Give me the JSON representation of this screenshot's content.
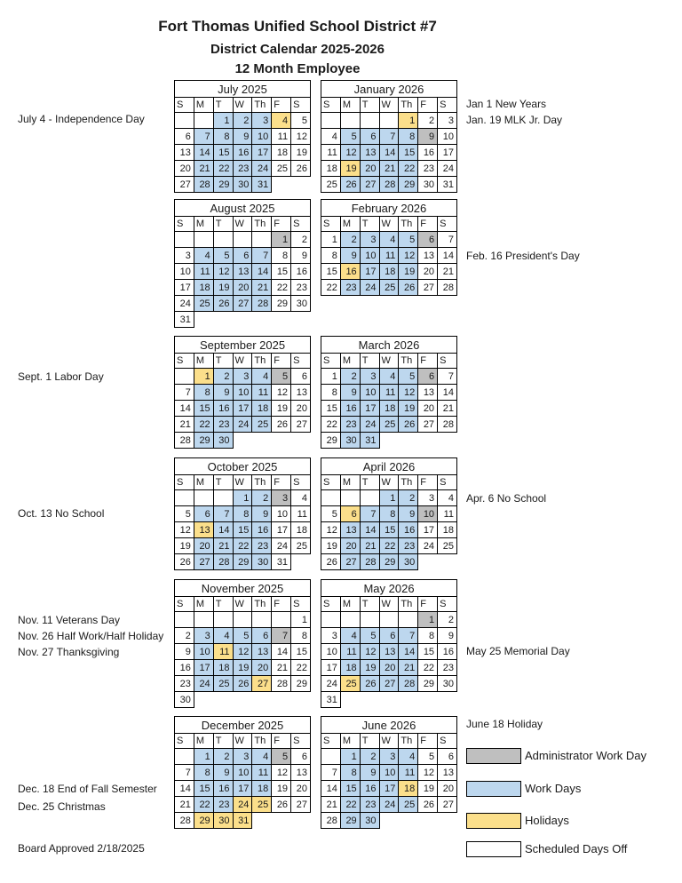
{
  "header": {
    "title": "Fort Thomas Unified School District #7",
    "subtitle": "District Calendar 2025-2026",
    "subtitle2": "12 Month Employee"
  },
  "colors": {
    "work_days": "#BDD7EE",
    "holidays": "#FBDF8B",
    "admin_day": "#BFBFBF",
    "days_off": "#FFFFFF",
    "border": "#000000"
  },
  "day_headers": [
    "S",
    "M",
    "T",
    "W",
    "Th",
    "F",
    "S"
  ],
  "cell_code_legend": {
    "w": "work day (blue)",
    "h": "holiday (yellow)",
    "a": "administrator work day (gray)",
    "o": "scheduled day off (white)",
    "e": "blank leading cell",
    "-": "no cell"
  },
  "months": [
    {
      "name": "July 2025",
      "weeks": [
        [
          "e",
          "e",
          "1w",
          "2w",
          "3w",
          "4h",
          "5o"
        ],
        [
          "6o",
          "7w",
          "8w",
          "9w",
          "10w",
          "11o",
          "12o"
        ],
        [
          "13o",
          "14w",
          "15w",
          "16w",
          "17w",
          "18o",
          "19o"
        ],
        [
          "20o",
          "21w",
          "22w",
          "23w",
          "24w",
          "25o",
          "26o"
        ],
        [
          "27o",
          "28w",
          "29w",
          "30w",
          "31w",
          "-",
          "-"
        ]
      ]
    },
    {
      "name": "August 2025",
      "weeks": [
        [
          "e",
          "e",
          "e",
          "e",
          "e",
          "1a",
          "2o"
        ],
        [
          "3o",
          "4w",
          "5w",
          "6w",
          "7w",
          "8o",
          "9o"
        ],
        [
          "10o",
          "11w",
          "12w",
          "13w",
          "14w",
          "15o",
          "16o"
        ],
        [
          "17o",
          "18w",
          "19w",
          "20w",
          "21w",
          "22o",
          "23o"
        ],
        [
          "24o",
          "25w",
          "26w",
          "27w",
          "28w",
          "29o",
          "30o"
        ],
        [
          "31o",
          "-",
          "-",
          "-",
          "-",
          "-",
          "-"
        ]
      ]
    },
    {
      "name": "September 2025",
      "weeks": [
        [
          "e",
          "1h",
          "2w",
          "3w",
          "4w",
          "5a",
          "6o"
        ],
        [
          "7o",
          "8w",
          "9w",
          "10w",
          "11w",
          "12o",
          "13o"
        ],
        [
          "14o",
          "15w",
          "16w",
          "17w",
          "18w",
          "19o",
          "20o"
        ],
        [
          "21o",
          "22w",
          "23w",
          "24w",
          "25w",
          "26o",
          "27o"
        ],
        [
          "28o",
          "29w",
          "30w",
          "-",
          "-",
          "-",
          "-"
        ]
      ]
    },
    {
      "name": "October 2025",
      "weeks": [
        [
          "e",
          "e",
          "e",
          "1w",
          "2w",
          "3a",
          "4o"
        ],
        [
          "5o",
          "6w",
          "7w",
          "8w",
          "9w",
          "10o",
          "11o"
        ],
        [
          "12o",
          "13h",
          "14w",
          "15w",
          "16w",
          "17o",
          "18o"
        ],
        [
          "19o",
          "20w",
          "21w",
          "22w",
          "23w",
          "24o",
          "25o"
        ],
        [
          "26o",
          "27w",
          "28w",
          "29w",
          "30w",
          "31o",
          "-"
        ]
      ]
    },
    {
      "name": "November 2025",
      "weeks": [
        [
          "e",
          "e",
          "e",
          "e",
          "e",
          "e",
          "1o"
        ],
        [
          "2o",
          "3w",
          "4w",
          "5w",
          "6w",
          "7a",
          "8o"
        ],
        [
          "9o",
          "10w",
          "11h",
          "12w",
          "13w",
          "14o",
          "15o"
        ],
        [
          "16o",
          "17w",
          "18w",
          "19w",
          "20w",
          "21o",
          "22o"
        ],
        [
          "23o",
          "24w",
          "25w",
          "26w",
          "27h",
          "28o",
          "29o"
        ],
        [
          "30o",
          "-",
          "-",
          "-",
          "-",
          "-",
          "-"
        ]
      ]
    },
    {
      "name": "December 2025",
      "weeks": [
        [
          "e",
          "1w",
          "2w",
          "3w",
          "4w",
          "5a",
          "6o"
        ],
        [
          "7o",
          "8w",
          "9w",
          "10w",
          "11w",
          "12o",
          "13o"
        ],
        [
          "14o",
          "15w",
          "16w",
          "17w",
          "18w",
          "19o",
          "20o"
        ],
        [
          "21o",
          "22w",
          "23w",
          "24h",
          "25h",
          "26o",
          "27o"
        ],
        [
          "28o",
          "29h",
          "30h",
          "31h",
          "-",
          "-",
          "-"
        ]
      ]
    },
    {
      "name": "January 2026",
      "weeks": [
        [
          "e",
          "e",
          "e",
          "e",
          "1h",
          "2o",
          "3o"
        ],
        [
          "4o",
          "5w",
          "6w",
          "7w",
          "8w",
          "9a",
          "10o"
        ],
        [
          "11o",
          "12w",
          "13w",
          "14w",
          "15w",
          "16o",
          "17o"
        ],
        [
          "18o",
          "19h",
          "20w",
          "21w",
          "22w",
          "23o",
          "24o"
        ],
        [
          "25o",
          "26w",
          "27w",
          "28w",
          "29w",
          "30o",
          "31o"
        ]
      ]
    },
    {
      "name": "February 2026",
      "weeks": [
        [
          "1o",
          "2w",
          "3w",
          "4w",
          "5w",
          "6a",
          "7o"
        ],
        [
          "8o",
          "9w",
          "10w",
          "11w",
          "12w",
          "13o",
          "14o"
        ],
        [
          "15o",
          "16h",
          "17w",
          "18w",
          "19w",
          "20o",
          "21o"
        ],
        [
          "22o",
          "23w",
          "24w",
          "25w",
          "26w",
          "27o",
          "28o"
        ]
      ]
    },
    {
      "name": "March 2026",
      "weeks": [
        [
          "1o",
          "2w",
          "3w",
          "4w",
          "5w",
          "6a",
          "7o"
        ],
        [
          "8o",
          "9w",
          "10w",
          "11w",
          "12w",
          "13o",
          "14o"
        ],
        [
          "15o",
          "16w",
          "17w",
          "18w",
          "19w",
          "20o",
          "21o"
        ],
        [
          "22o",
          "23w",
          "24w",
          "25w",
          "26w",
          "27o",
          "28o"
        ],
        [
          "29o",
          "30w",
          "31w",
          "-",
          "-",
          "-",
          "-"
        ]
      ]
    },
    {
      "name": "April 2026",
      "weeks": [
        [
          "e",
          "e",
          "e",
          "1w",
          "2w",
          "3o",
          "4o"
        ],
        [
          "5o",
          "6h",
          "7w",
          "8w",
          "9w",
          "10a",
          "11o"
        ],
        [
          "12o",
          "13w",
          "14w",
          "15w",
          "16w",
          "17o",
          "18o"
        ],
        [
          "19o",
          "20w",
          "21w",
          "22w",
          "23w",
          "24o",
          "25o"
        ],
        [
          "26o",
          "27w",
          "28w",
          "29w",
          "30w",
          "-",
          "-"
        ]
      ]
    },
    {
      "name": "May 2026",
      "weeks": [
        [
          "e",
          "e",
          "e",
          "e",
          "e",
          "1a",
          "2o"
        ],
        [
          "3o",
          "4w",
          "5w",
          "6w",
          "7w",
          "8o",
          "9o"
        ],
        [
          "10o",
          "11w",
          "12w",
          "13w",
          "14w",
          "15o",
          "16o"
        ],
        [
          "17o",
          "18w",
          "19w",
          "20w",
          "21w",
          "22o",
          "23o"
        ],
        [
          "24o",
          "25h",
          "26w",
          "27w",
          "28w",
          "29o",
          "30o"
        ],
        [
          "31o",
          "-",
          "-",
          "-",
          "-",
          "-",
          "-"
        ]
      ]
    },
    {
      "name": "June 2026",
      "weeks": [
        [
          "e",
          "1w",
          "2w",
          "3w",
          "4w",
          "5o",
          "6o"
        ],
        [
          "7o",
          "8w",
          "9w",
          "10w",
          "11w",
          "12o",
          "13o"
        ],
        [
          "14o",
          "15w",
          "16w",
          "17w",
          "18h",
          "19o",
          "20o"
        ],
        [
          "21o",
          "22w",
          "23w",
          "24w",
          "25w",
          "26o",
          "27o"
        ],
        [
          "28o",
          "29w",
          "30w",
          "-",
          "-",
          "-",
          "-"
        ]
      ]
    }
  ],
  "annotations": {
    "left": [
      {
        "text": "July 4 - Independence Day"
      },
      {
        "text": "Sept. 1 Labor Day"
      },
      {
        "text": "Oct. 13 No School"
      },
      {
        "text": "Nov. 11 Veterans Day"
      },
      {
        "text": "Nov. 26 Half Work/Half Holiday"
      },
      {
        "text": "Nov. 27 Thanksgiving"
      },
      {
        "text": "Dec. 18 End of Fall Semester"
      },
      {
        "text": "Dec. 25 Christmas"
      }
    ],
    "right": [
      {
        "text": "Jan 1 New Years"
      },
      {
        "text": "Jan. 19 MLK Jr. Day"
      },
      {
        "text": "Feb. 16 President's Day"
      },
      {
        "text": "Apr. 6 No School"
      },
      {
        "text": "May 25 Memorial Day"
      },
      {
        "text": "June 18 Holiday"
      }
    ]
  },
  "legend": {
    "items": [
      {
        "label": "Administrator Work Day",
        "color_key": "admin_day"
      },
      {
        "label": "Work Days",
        "color_key": "work_days"
      },
      {
        "label": "Holidays",
        "color_key": "holidays"
      },
      {
        "label": "Scheduled Days Off",
        "color_key": "days_off"
      }
    ]
  },
  "footer": {
    "board_approved": "Board Approved 2/18/2025"
  }
}
